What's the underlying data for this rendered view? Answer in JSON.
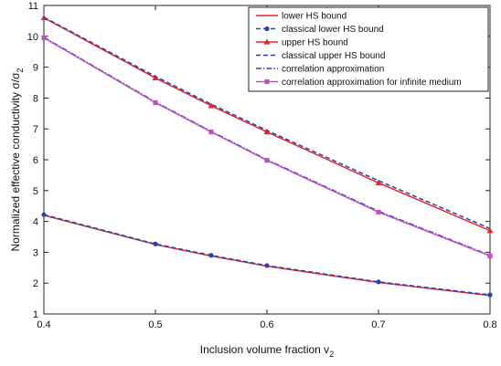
{
  "chart_data": {
    "type": "line",
    "xlabel": "Inclusion volume fraction v",
    "xlabel_subscript": "2",
    "ylabel": "Normalized effective conductivity σ/σ",
    "ylabel_subscript": "2",
    "xlim": [
      0.4,
      0.8
    ],
    "ylim": [
      1,
      11
    ],
    "x_ticks": [
      "0.4",
      "0.5",
      "0.6",
      "0.7",
      "0.8"
    ],
    "y_ticks": [
      "1",
      "2",
      "3",
      "4",
      "5",
      "6",
      "7",
      "8",
      "9",
      "10",
      "11"
    ],
    "grid": false,
    "legend_position": "top-right",
    "series": [
      {
        "name": "lower HS bound",
        "color": "#e8262b",
        "dash": "solid",
        "marker": "none",
        "x": [
          0.4,
          0.5,
          0.55,
          0.6,
          0.7,
          0.8
        ],
        "y": [
          4.2,
          3.25,
          2.88,
          2.55,
          2.02,
          1.6
        ]
      },
      {
        "name": "classical lower HS bound",
        "color": "#2a3fb3",
        "dash": "dashed",
        "marker": "dot",
        "x": [
          0.4,
          0.5,
          0.55,
          0.6,
          0.7,
          0.8
        ],
        "y": [
          4.22,
          3.27,
          2.9,
          2.57,
          2.04,
          1.62
        ]
      },
      {
        "name": "upper HS bound",
        "color": "#e8262b",
        "dash": "solid",
        "marker": "triangle",
        "x": [
          0.4,
          0.5,
          0.55,
          0.6,
          0.7,
          0.8
        ],
        "y": [
          10.6,
          8.65,
          7.75,
          6.9,
          5.25,
          3.7
        ]
      },
      {
        "name": "classical upper HS bound",
        "color": "#2a3fb3",
        "dash": "dashed",
        "marker": "none",
        "x": [
          0.4,
          0.5,
          0.55,
          0.6,
          0.7,
          0.8
        ],
        "y": [
          10.62,
          8.7,
          7.8,
          6.95,
          5.32,
          3.77
        ]
      },
      {
        "name": "correlation approximation",
        "color": "#2a3fb3",
        "dash": "dashdot",
        "marker": "none",
        "x": [
          0.4,
          0.5,
          0.55,
          0.6,
          0.7,
          0.8
        ],
        "y": [
          9.97,
          7.87,
          6.92,
          6.0,
          4.33,
          2.9
        ]
      },
      {
        "name": "correlation approximation for infinite medium",
        "color": "#c050c8",
        "dash": "solid",
        "marker": "square",
        "x": [
          0.4,
          0.5,
          0.55,
          0.6,
          0.7,
          0.8
        ],
        "y": [
          9.95,
          7.85,
          6.9,
          5.98,
          4.3,
          2.88
        ]
      }
    ]
  }
}
